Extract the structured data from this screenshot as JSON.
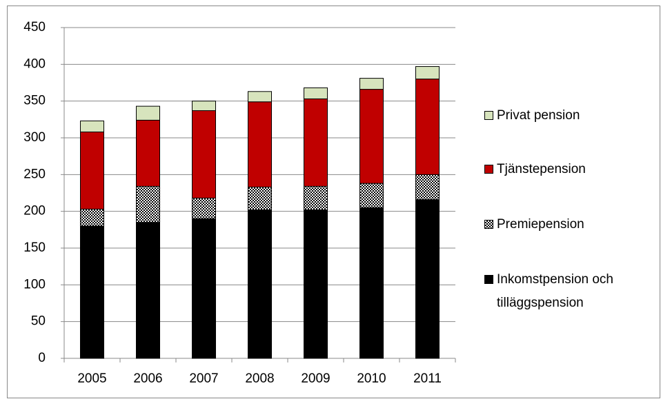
{
  "chart_data": {
    "type": "stacked-bar",
    "categories": [
      "2005",
      "2006",
      "2007",
      "2008",
      "2009",
      "2010",
      "2011"
    ],
    "series": [
      {
        "name": "Inkomstpension och tilläggspension",
        "color": "#000000",
        "values": [
          180,
          185,
          190,
          202,
          202,
          205,
          216
        ]
      },
      {
        "name": "Premiepension",
        "color": "#000000",
        "pattern": "checker",
        "values": [
          23,
          49,
          28,
          31,
          32,
          33,
          34
        ]
      },
      {
        "name": "Tjänstepension",
        "color": "#c00000",
        "values": [
          105,
          90,
          119,
          116,
          119,
          128,
          130
        ]
      },
      {
        "name": "Privat pension",
        "color": "#d7e4bd",
        "values": [
          15,
          19,
          13,
          14,
          15,
          15,
          17
        ]
      }
    ],
    "ylim": [
      0,
      450
    ],
    "yticks": [
      0,
      50,
      100,
      150,
      200,
      250,
      300,
      350,
      400,
      450
    ],
    "grid": true,
    "legend": "right"
  }
}
